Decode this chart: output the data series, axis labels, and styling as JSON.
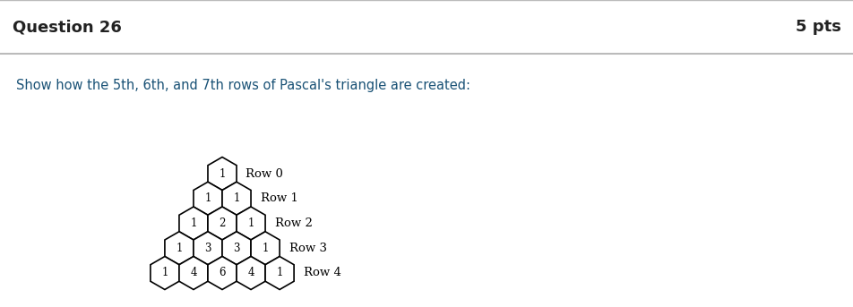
{
  "title": "Question 26",
  "pts": "5 pts",
  "subtitle": "Show how the 5th, 6th, and 7th rows of Pascal's triangle are created:",
  "header_bg": "#eeeeee",
  "header_text_color": "#222222",
  "subtitle_color": "#1a5276",
  "body_bg": "#ffffff",
  "rows": [
    {
      "label": "Row 0",
      "values": [
        1
      ]
    },
    {
      "label": "Row 1",
      "values": [
        1,
        1
      ]
    },
    {
      "label": "Row 2",
      "values": [
        1,
        2,
        1
      ]
    },
    {
      "label": "Row 3",
      "values": [
        1,
        3,
        3,
        1
      ]
    },
    {
      "label": "Row 4",
      "values": [
        1,
        4,
        6,
        4,
        1
      ]
    }
  ],
  "figsize": [
    9.53,
    3.43
  ],
  "dpi": 100
}
